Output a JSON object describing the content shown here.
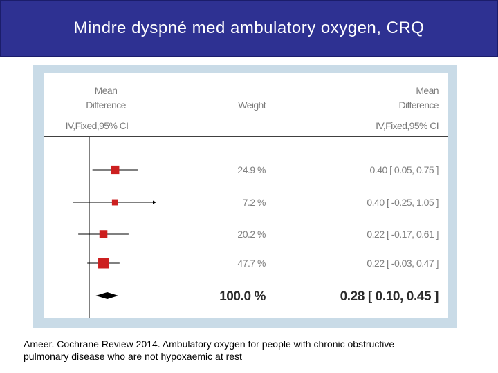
{
  "title": "Mindre dyspné med ambulatory oxygen, CRQ",
  "caption": {
    "line1": "Ameer. Cochrane Review 2014. Ambulatory oxygen for people with chronic obstructive",
    "line2": "pulmonary disease who are not hypoxaemic at rest"
  },
  "chart_data": {
    "type": "forest",
    "headers": {
      "left_line1": "Mean",
      "left_line2": "Difference",
      "left_line3": "IV,Fixed,95% CI",
      "weight": "Weight",
      "right_line1": "Mean",
      "right_line2": "Difference",
      "right_line3": "IV,Fixed,95% CI"
    },
    "studies": [
      {
        "weight": "24.9 %",
        "estimate": 0.4,
        "lower": 0.05,
        "upper": 0.75,
        "ci_text": "0.40 [ 0.05, 0.75 ]"
      },
      {
        "weight": "7.2 %",
        "estimate": 0.4,
        "lower": -0.25,
        "upper": 1.05,
        "ci_text": "0.40 [ -0.25, 1.05 ]",
        "arrow_right": true
      },
      {
        "weight": "20.2 %",
        "estimate": 0.22,
        "lower": -0.17,
        "upper": 0.61,
        "ci_text": "0.22 [ -0.17, 0.61 ]"
      },
      {
        "weight": "47.7 %",
        "estimate": 0.22,
        "lower": -0.03,
        "upper": 0.47,
        "ci_text": "0.22 [ -0.03, 0.47 ]"
      }
    ],
    "total": {
      "weight": "100.0 %",
      "estimate": 0.28,
      "lower": 0.1,
      "upper": 0.45,
      "ci_text": "0.28 [ 0.10, 0.45 ]"
    },
    "null_line": 0,
    "colors": {
      "marker": "#cc1f1f",
      "diamond": "#000000",
      "frame": "#c9dbe7",
      "title_bg": "#2e3192"
    }
  }
}
